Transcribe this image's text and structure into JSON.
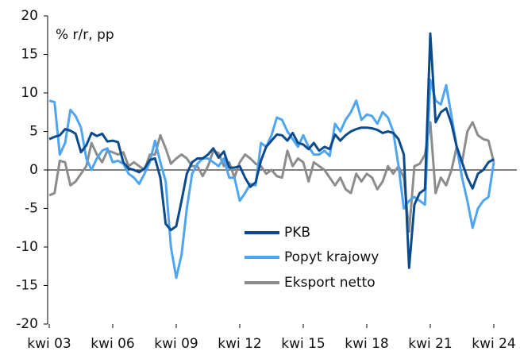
{
  "chart_data": {
    "type": "line",
    "y_label": "% r/r, pp",
    "categories": [
      "kwi 03",
      null,
      null,
      null,
      null,
      null,
      null,
      null,
      null,
      null,
      null,
      null,
      "kwi 06",
      null,
      null,
      null,
      null,
      null,
      null,
      null,
      null,
      null,
      null,
      null,
      "kwi 09",
      null,
      null,
      null,
      null,
      null,
      null,
      null,
      null,
      null,
      null,
      null,
      "kwi 12",
      null,
      null,
      null,
      null,
      null,
      null,
      null,
      null,
      null,
      null,
      null,
      "kwi 15",
      null,
      null,
      null,
      null,
      null,
      null,
      null,
      null,
      null,
      null,
      null,
      "kwi 18",
      null,
      null,
      null,
      null,
      null,
      null,
      null,
      null,
      null,
      null,
      null,
      "kwi 21",
      null,
      null,
      null,
      null,
      null,
      null,
      null,
      null,
      null,
      null,
      null,
      "kwi 24"
    ],
    "series": [
      {
        "name": "PKB",
        "color": "#0b4a8c",
        "values": [
          4.0,
          4.3,
          4.5,
          5.3,
          5.1,
          4.7,
          2.3,
          3.2,
          4.8,
          4.4,
          4.7,
          3.7,
          3.8,
          3.6,
          1.0,
          0.2,
          0.0,
          -0.3,
          0.2,
          1.3,
          1.5,
          -1.0,
          -7.0,
          -7.8,
          -7.3,
          -4.0,
          -0.5,
          1.0,
          1.5,
          1.5,
          2.0,
          2.8,
          1.6,
          2.4,
          0.3,
          0.3,
          0.5,
          -1.0,
          -2.2,
          -1.6,
          1.2,
          3.0,
          3.8,
          4.6,
          4.5,
          3.8,
          4.8,
          3.5,
          3.3,
          2.7,
          3.5,
          2.5,
          3.0,
          2.7,
          4.6,
          3.8,
          4.5,
          5.0,
          5.3,
          5.5,
          5.5,
          5.4,
          5.2,
          4.8,
          5.0,
          4.8,
          4.0,
          2.0,
          -12.7,
          -4.5,
          -3.0,
          -2.5,
          17.7,
          6.2,
          7.5,
          8.0,
          6.0,
          3.0,
          1.0,
          -1.0,
          -2.4,
          -0.5,
          0.0,
          1.0,
          1.4
        ]
      },
      {
        "name": "Popyt krajowy",
        "color": "#4ea5f2",
        "values": [
          9.0,
          8.8,
          2.0,
          3.5,
          7.8,
          7.0,
          5.5,
          1.5,
          0.0,
          1.5,
          2.5,
          2.8,
          1.0,
          1.2,
          0.8,
          -0.5,
          -1.0,
          -1.8,
          -0.5,
          1.0,
          3.8,
          1.0,
          -1.5,
          -10.0,
          -14.0,
          -11.0,
          -5.0,
          -0.5,
          0.8,
          1.5,
          1.5,
          1.0,
          0.5,
          1.5,
          -1.0,
          -1.0,
          -4.0,
          -3.0,
          -1.8,
          -2.0,
          3.5,
          3.0,
          4.5,
          6.8,
          6.5,
          5.0,
          4.0,
          3.0,
          4.5,
          3.0,
          2.0,
          2.0,
          2.5,
          1.8,
          6.0,
          5.0,
          6.5,
          7.5,
          9.0,
          6.5,
          7.2,
          7.0,
          6.0,
          7.5,
          6.8,
          5.0,
          0.5,
          -5.0,
          -4.0,
          -3.5,
          -4.0,
          -4.5,
          11.7,
          9.0,
          8.5,
          11.0,
          7.0,
          3.0,
          -1.0,
          -4.0,
          -7.5,
          -5.0,
          -4.0,
          -3.5,
          1.0
        ]
      },
      {
        "name": "Eksport netto",
        "color": "#8c8c8c",
        "values": [
          -3.3,
          -3.0,
          1.2,
          1.0,
          -2.0,
          -1.5,
          -0.5,
          0.5,
          3.5,
          2.0,
          1.0,
          2.5,
          2.3,
          2.0,
          2.3,
          0.5,
          1.0,
          0.5,
          0.0,
          2.0,
          2.0,
          4.5,
          2.8,
          0.8,
          1.5,
          2.0,
          1.5,
          0.5,
          0.5,
          -0.8,
          0.5,
          2.5,
          2.2,
          0.5,
          1.0,
          -1.0,
          1.0,
          2.0,
          1.5,
          0.8,
          0.5,
          -0.5,
          0.0,
          -0.8,
          -1.0,
          2.5,
          0.5,
          1.5,
          1.0,
          -1.5,
          1.0,
          0.5,
          0.0,
          -1.0,
          -2.0,
          -1.0,
          -2.5,
          -3.0,
          -0.5,
          -1.5,
          -0.5,
          -1.0,
          -2.5,
          -1.5,
          0.5,
          -0.5,
          0.5,
          -1.0,
          -8.0,
          0.5,
          0.8,
          2.0,
          6.2,
          -3.0,
          -1.0,
          -2.0,
          0.0,
          3.0,
          1.0,
          5.0,
          6.2,
          4.5,
          4.0,
          3.8,
          1.0
        ]
      }
    ],
    "ylim": [
      -20,
      20
    ],
    "yticks": [
      -20,
      -15,
      -10,
      -5,
      0,
      5,
      10,
      15,
      20
    ]
  }
}
